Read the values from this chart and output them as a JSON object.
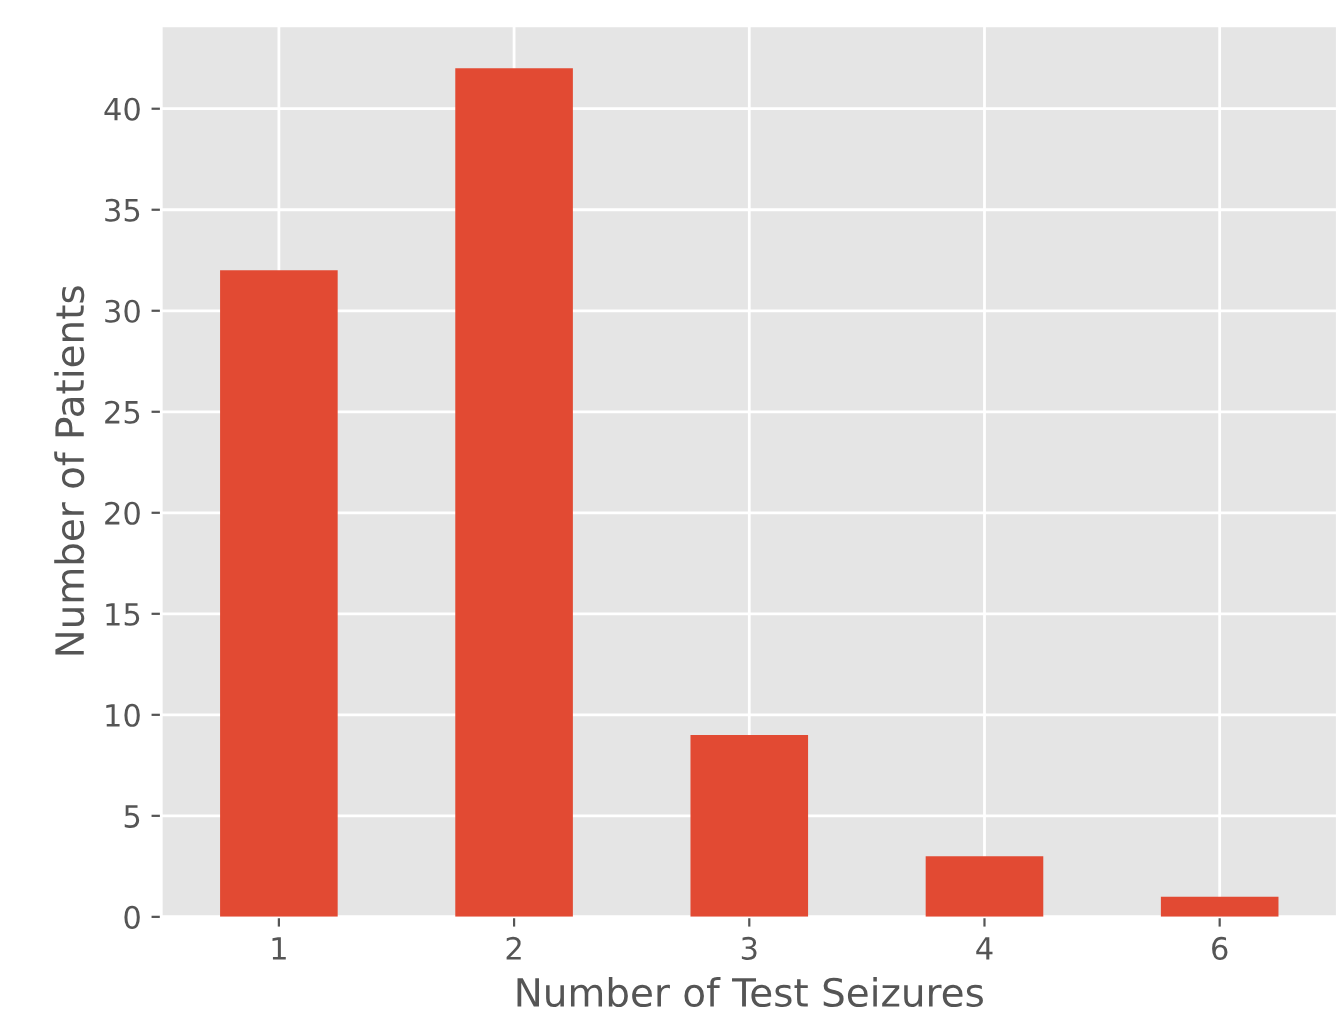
{
  "chart_data": {
    "type": "bar",
    "xlabel": "Number of Test Seizures",
    "ylabel": "Number of Patients",
    "categories": [
      "1",
      "2",
      "3",
      "4",
      "6"
    ],
    "values": [
      32,
      42,
      9,
      3,
      1
    ],
    "color": "#e24a33",
    "ylim": [
      0,
      44.1
    ],
    "yticks": [
      0,
      5,
      10,
      15,
      20,
      25,
      30,
      35,
      40
    ],
    "grid": true
  }
}
